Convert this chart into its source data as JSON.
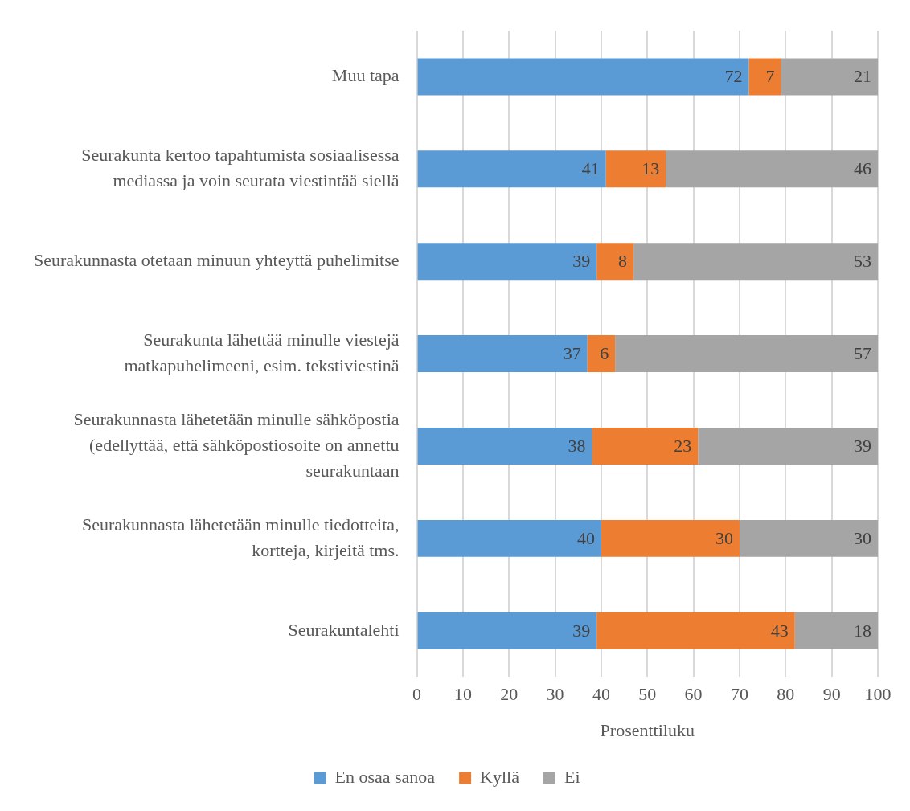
{
  "chart_data": {
    "type": "bar",
    "orientation": "horizontal",
    "stacked": true,
    "xlabel": "Prosenttiluku",
    "categories": [
      "Muu tapa",
      "Seurakunta kertoo tapahtumista sosiaalisessa mediassa ja voin seurata viestintää siellä",
      "Seurakunnasta otetaan minuun yhteyttä puhelimitse",
      "Seurakunta lähettää minulle viestejä matkapuhelimeeni, esim. tekstiviestinä",
      "Seurakunnasta lähetetään minulle sähköpostia (edellyttää, että sähköpostiosoite on annettu seurakuntaan",
      "Seurakunnasta lähetetään minulle tiedotteita, kortteja, kirjeitä tms.",
      "Seurakuntalehti"
    ],
    "series": [
      {
        "name": "En osaa sanoa",
        "color": "#5b9bd5",
        "values": [
          72,
          41,
          39,
          37,
          38,
          40,
          39
        ]
      },
      {
        "name": "Kyllä",
        "color": "#ed7d31",
        "values": [
          7,
          13,
          8,
          6,
          23,
          30,
          43
        ]
      },
      {
        "name": "Ei",
        "color": "#a5a5a5",
        "values": [
          21,
          46,
          53,
          57,
          39,
          30,
          18
        ]
      }
    ],
    "xlim": [
      0,
      100
    ],
    "xticks": [
      0,
      10,
      20,
      30,
      40,
      50,
      60,
      70,
      80,
      90,
      100
    ],
    "grid": "x",
    "legend": "bottom",
    "data_labels": true
  }
}
